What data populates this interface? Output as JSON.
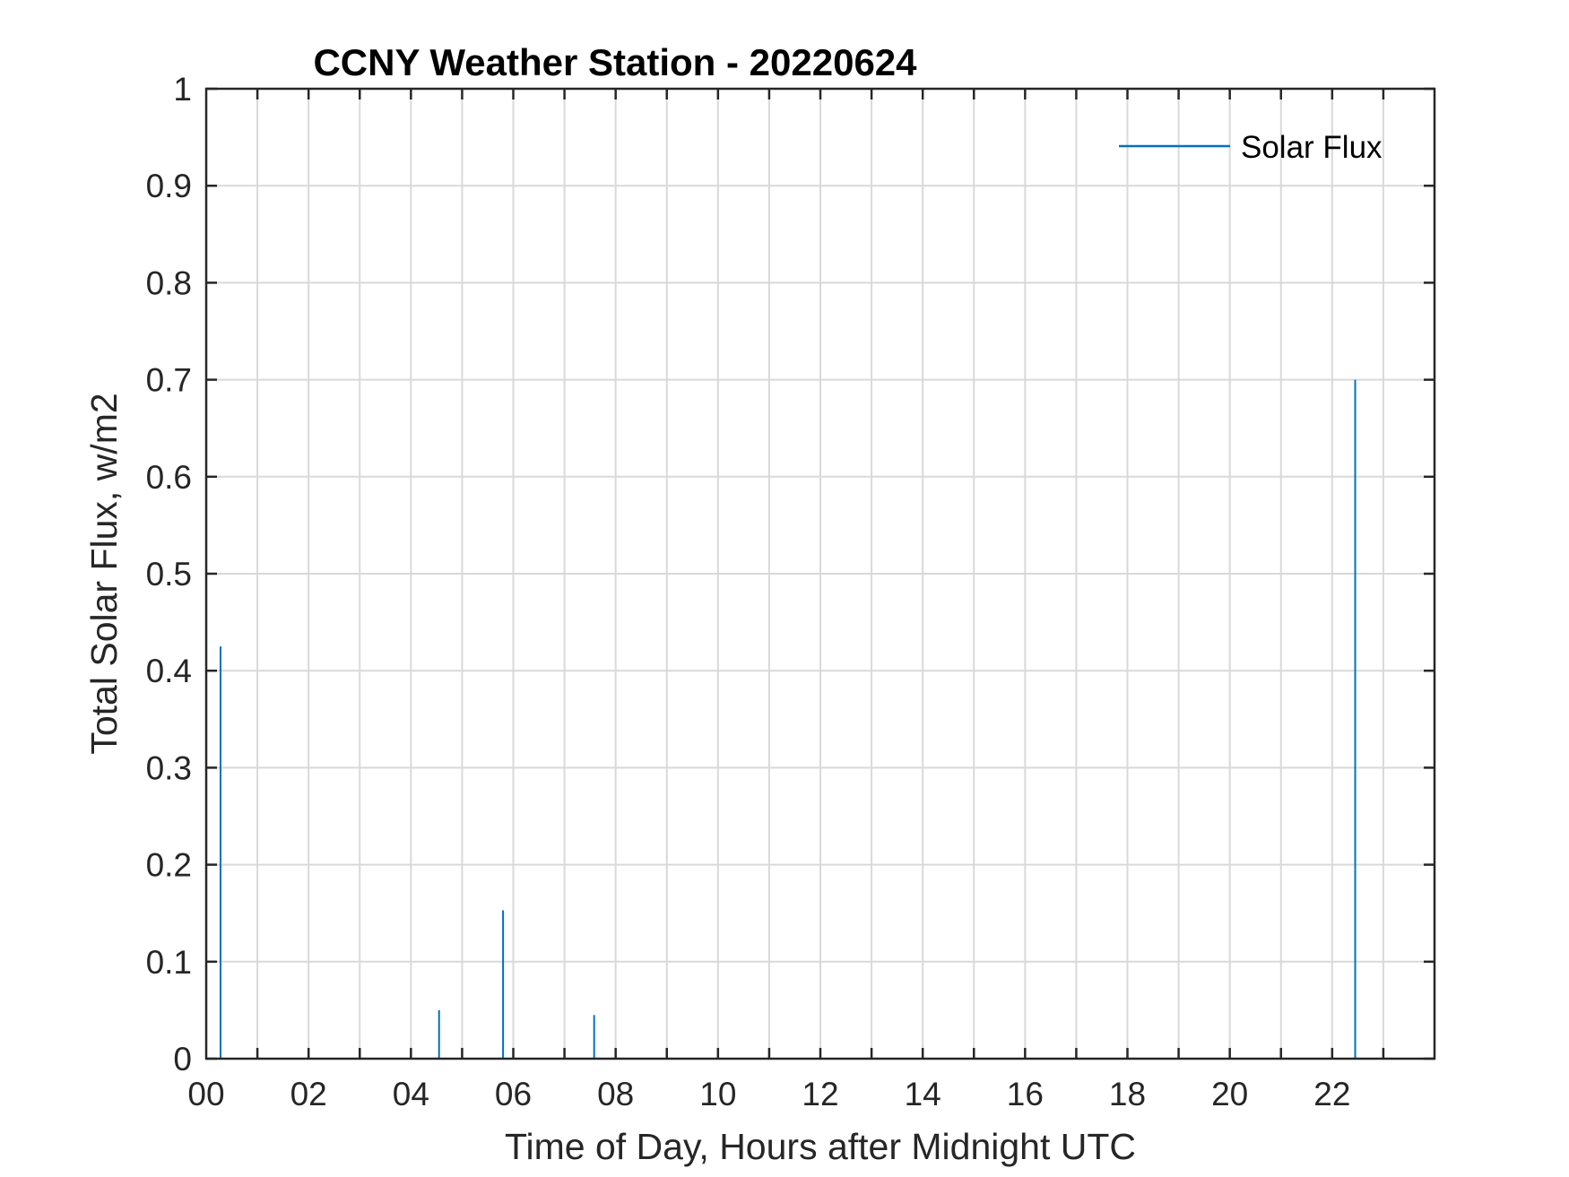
{
  "chart_data": {
    "type": "line",
    "title": "CCNY Weather Station - 20220624",
    "xlabel": "Time of Day, Hours after Midnight UTC",
    "ylabel": "Total Solar Flux, w/m2",
    "xlim": [
      0,
      24
    ],
    "ylim": [
      0,
      1
    ],
    "xticks": [
      0,
      2,
      4,
      6,
      8,
      10,
      12,
      14,
      16,
      18,
      20,
      22
    ],
    "xtick_labels": [
      "00",
      "02",
      "04",
      "06",
      "08",
      "10",
      "12",
      "14",
      "16",
      "18",
      "20",
      "22"
    ],
    "xgrid": [
      1,
      2,
      3,
      4,
      5,
      6,
      7,
      8,
      9,
      10,
      11,
      12,
      13,
      14,
      15,
      16,
      17,
      18,
      19,
      20,
      21,
      22,
      23
    ],
    "yticks": [
      0,
      0.1,
      0.2,
      0.3,
      0.4,
      0.5,
      0.6,
      0.7,
      0.8,
      0.9,
      1
    ],
    "ytick_labels": [
      "0",
      "0.1",
      "0.2",
      "0.3",
      "0.4",
      "0.5",
      "0.6",
      "0.7",
      "0.8",
      "0.9",
      "1"
    ],
    "grid": true,
    "legend_position": "top-right",
    "series": [
      {
        "name": "Solar Flux",
        "color": "#0072bd",
        "points": [
          {
            "x": 0.28,
            "y": 0.425
          },
          {
            "x": 4.55,
            "y": 0.05
          },
          {
            "x": 5.8,
            "y": 0.153
          },
          {
            "x": 7.58,
            "y": 0.045
          },
          {
            "x": 22.45,
            "y": 0.7
          }
        ]
      }
    ]
  }
}
